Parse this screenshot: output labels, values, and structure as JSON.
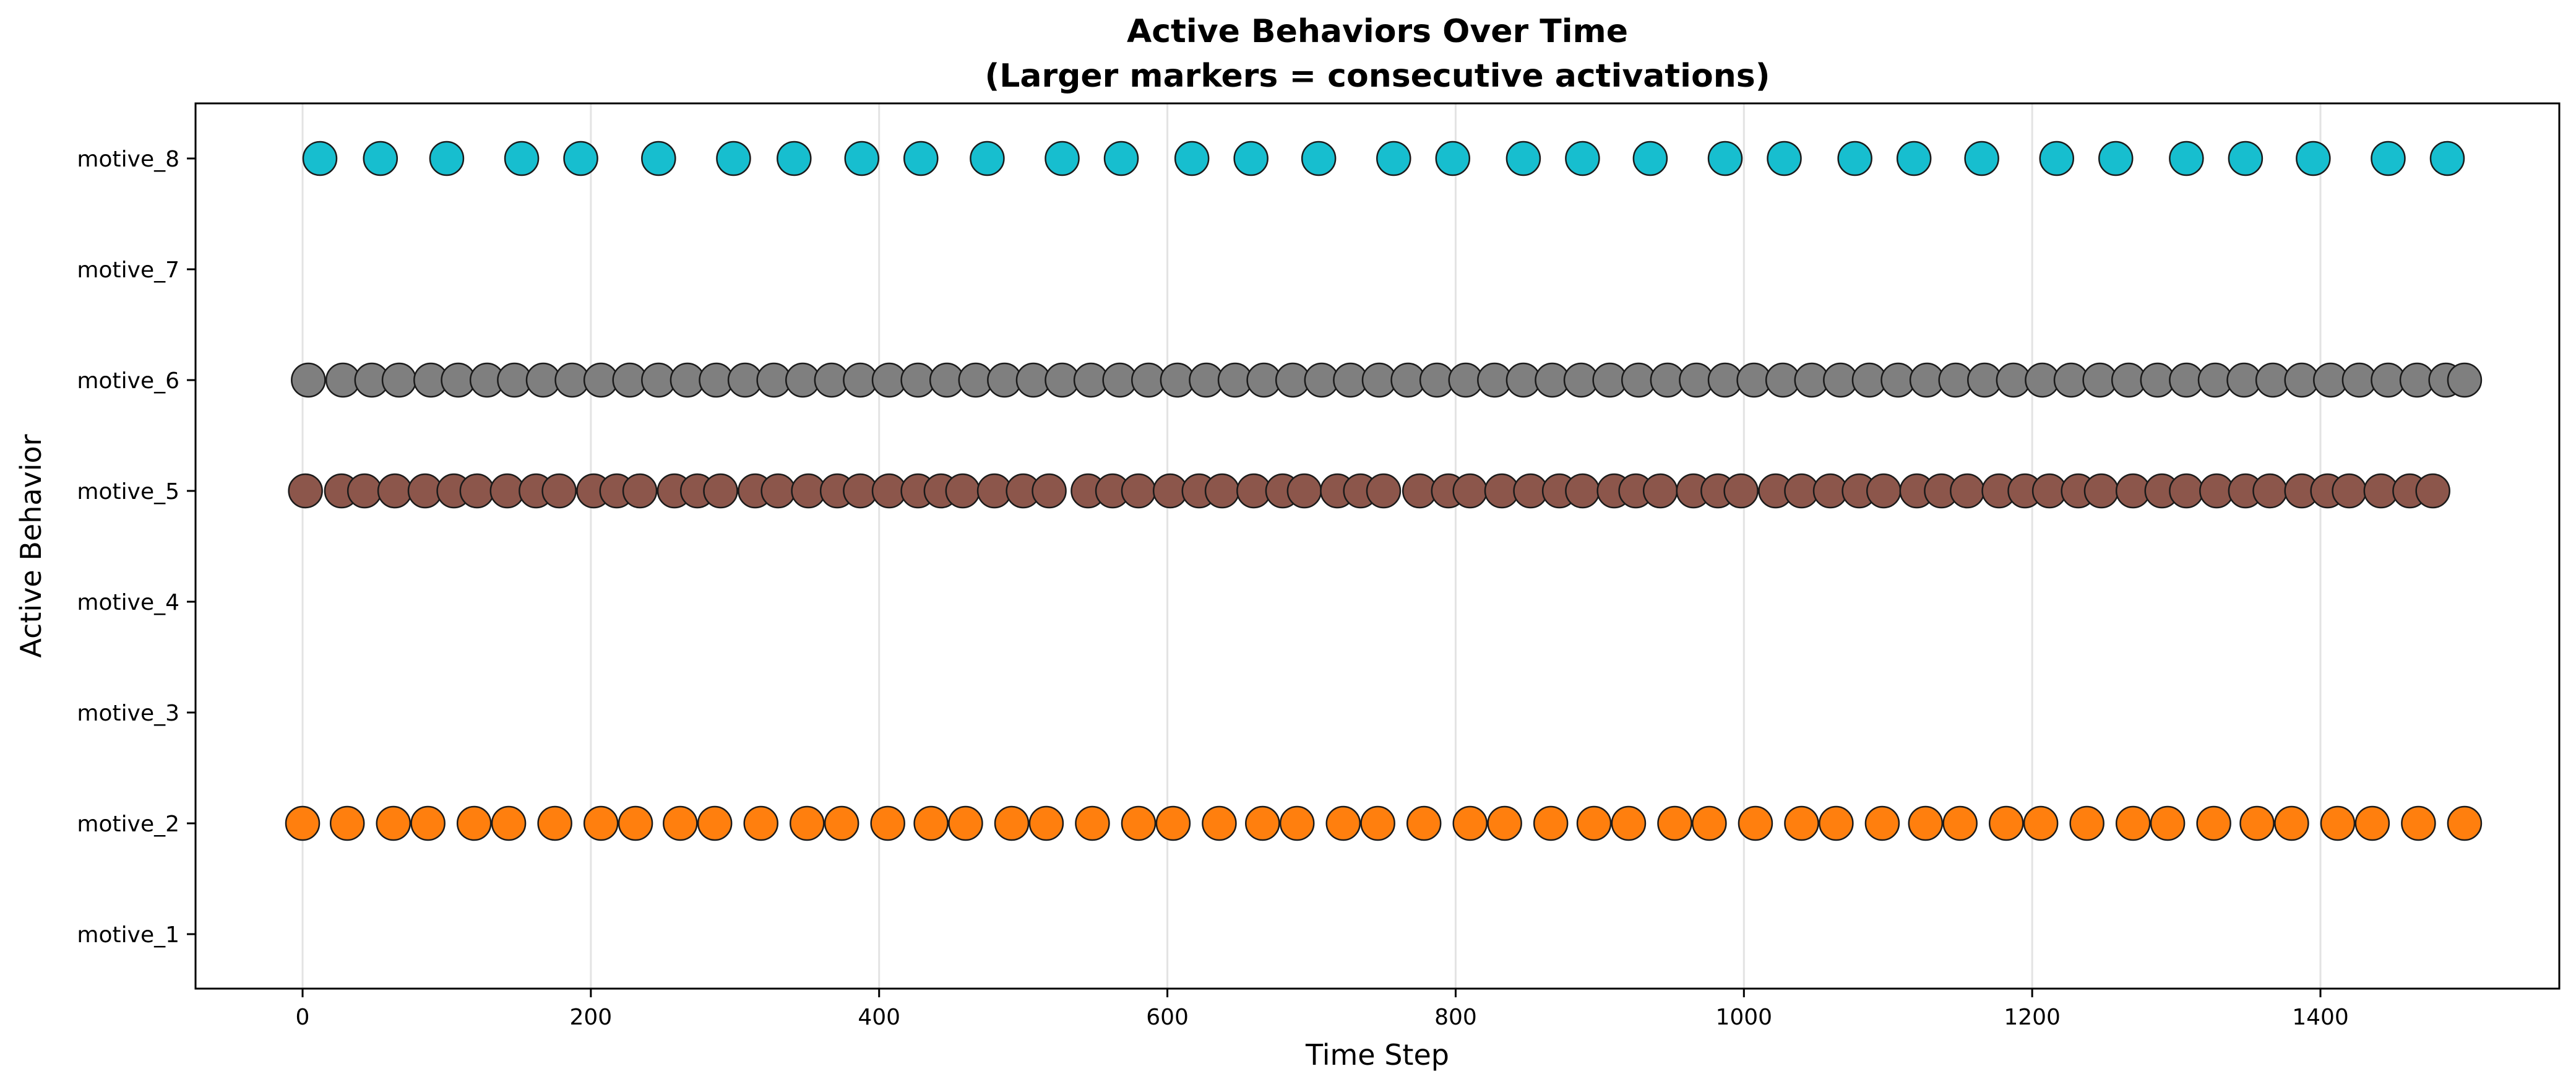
{
  "chart_data": {
    "type": "scatter",
    "title": "Active Behaviors Over Time",
    "subtitle": "(Larger markers = consecutive activations)",
    "xlabel": "Time Step",
    "ylabel": "Active Behavior",
    "xlim": [
      -75,
      1575
    ],
    "xticks": [
      0,
      200,
      400,
      600,
      800,
      1000,
      1200,
      1400
    ],
    "categories": [
      "motive_1",
      "motive_2",
      "motive_3",
      "motive_4",
      "motive_5",
      "motive_6",
      "motive_7",
      "motive_8"
    ],
    "grid": "vertical",
    "series": [
      {
        "category": "motive_8",
        "color": "#17becf",
        "x": [
          12,
          54,
          100,
          152,
          193,
          247,
          299,
          341,
          388,
          429,
          475,
          527,
          568,
          617,
          658,
          705,
          757,
          798,
          847,
          888,
          935,
          987,
          1028,
          1077,
          1118,
          1165,
          1217,
          1258,
          1307,
          1348,
          1395,
          1447,
          1488
        ]
      },
      {
        "category": "motive_6",
        "color": "#7f7f7f",
        "x": [
          4,
          28,
          48,
          67,
          89,
          108,
          128,
          147,
          167,
          187,
          207,
          227,
          247,
          267,
          287,
          307,
          327,
          347,
          367,
          387,
          407,
          427,
          447,
          467,
          487,
          507,
          527,
          547,
          567,
          587,
          607,
          627,
          647,
          667,
          687,
          707,
          727,
          747,
          767,
          787,
          807,
          827,
          847,
          867,
          887,
          907,
          927,
          947,
          967,
          987,
          1007,
          1027,
          1047,
          1067,
          1087,
          1107,
          1127,
          1147,
          1167,
          1187,
          1207,
          1227,
          1247,
          1267,
          1287,
          1307,
          1327,
          1347,
          1367,
          1387,
          1407,
          1427,
          1447,
          1467,
          1487,
          1500
        ]
      },
      {
        "category": "motive_5",
        "color": "#8c564b",
        "x": [
          2,
          27,
          43,
          64,
          85,
          105,
          121,
          142,
          162,
          178,
          202,
          218,
          234,
          258,
          274,
          290,
          314,
          330,
          351,
          371,
          387,
          407,
          427,
          443,
          458,
          480,
          500,
          518,
          545,
          562,
          580,
          602,
          622,
          638,
          660,
          680,
          695,
          718,
          734,
          750,
          775,
          795,
          810,
          832,
          852,
          872,
          888,
          910,
          925,
          942,
          965,
          982,
          998,
          1022,
          1040,
          1060,
          1080,
          1097,
          1120,
          1137,
          1155,
          1177,
          1195,
          1212,
          1232,
          1248,
          1270,
          1290,
          1307,
          1328,
          1348,
          1365,
          1387,
          1405,
          1420,
          1442,
          1462,
          1478
        ]
      },
      {
        "category": "motive_2",
        "color": "#ff7f0e",
        "x": [
          0,
          31,
          63,
          87,
          119,
          143,
          175,
          207,
          231,
          262,
          286,
          318,
          350,
          374,
          406,
          436,
          460,
          492,
          516,
          548,
          580,
          604,
          636,
          666,
          690,
          722,
          746,
          778,
          810,
          834,
          866,
          896,
          920,
          952,
          976,
          1008,
          1040,
          1064,
          1096,
          1126,
          1150,
          1182,
          1206,
          1238,
          1270,
          1294,
          1326,
          1356,
          1380,
          1412,
          1436,
          1468,
          1500
        ]
      }
    ]
  }
}
